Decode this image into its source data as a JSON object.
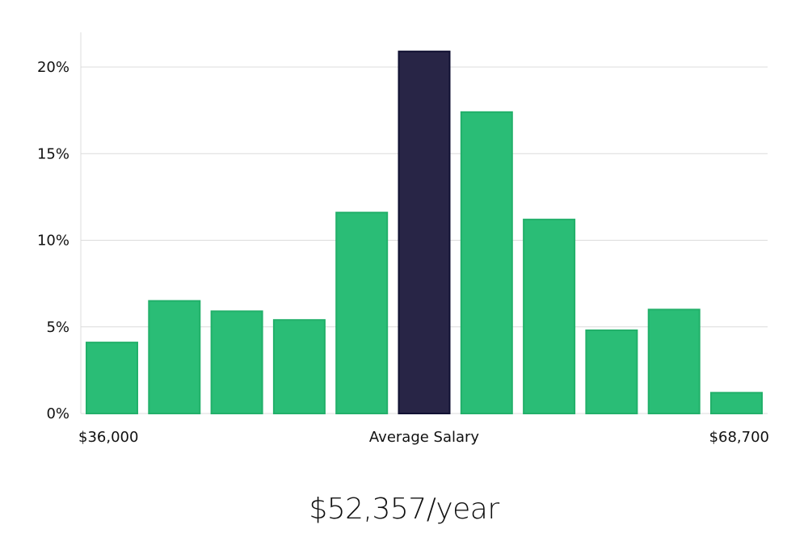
{
  "chart_data": {
    "type": "bar",
    "title": "",
    "xlabel": "Average Salary",
    "ylabel": "",
    "ylim": [
      0,
      22
    ],
    "yticks": [
      0,
      5,
      10,
      15,
      20
    ],
    "ytick_labels": [
      "0%",
      "5%",
      "10%",
      "15%",
      "20%"
    ],
    "x_edge_labels": {
      "left": "$36,000",
      "center": "Average Salary",
      "right": "$68,700"
    },
    "values": [
      4.1,
      6.5,
      5.9,
      5.4,
      11.6,
      20.9,
      17.4,
      11.2,
      4.8,
      6.0,
      1.2
    ],
    "highlight_index": 5,
    "grid": true
  },
  "colors": {
    "bar": "#2abd76",
    "bar_stroke": "#22b06a",
    "highlight": "#282546",
    "highlight_stroke": "#111133"
  },
  "caption": {
    "salary": "$52,357/year"
  }
}
